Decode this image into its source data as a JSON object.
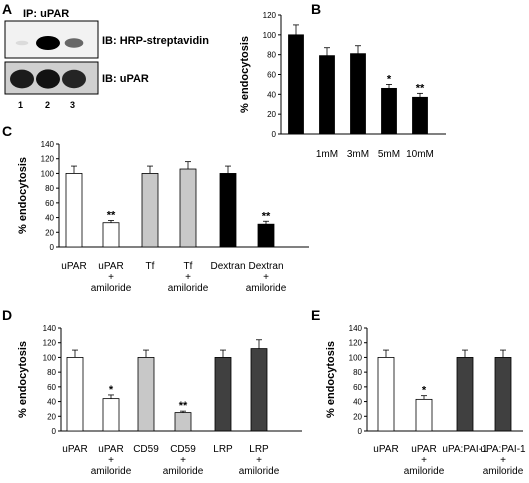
{
  "panel_a": {
    "letter": "A",
    "ip_label": "IP: uPAR",
    "blot_top_label": "IB: HRP-streptavidin",
    "blot_bottom_label": "IB: uPAR",
    "lanes": [
      "1",
      "2",
      "3"
    ],
    "top_band_intensity": [
      0.05,
      1.0,
      0.55
    ],
    "bottom_band_intensity": [
      0.85,
      0.9,
      0.8
    ]
  },
  "chart_data": [
    {
      "panel": "B",
      "type": "bar",
      "ylabel": "% endocytosis",
      "ylim": [
        0,
        120
      ],
      "yticks": [
        0,
        20,
        40,
        60,
        80,
        100,
        120
      ],
      "categories": [
        "",
        "1mM",
        "3mM",
        "5mM",
        "10mM"
      ],
      "values": [
        100,
        79,
        81,
        46,
        37
      ],
      "errors": [
        10,
        8,
        8,
        4,
        4
      ],
      "significance": [
        "",
        "",
        "",
        "*",
        "**"
      ],
      "colors": [
        "#000000",
        "#000000",
        "#000000",
        "#000000",
        "#000000"
      ]
    },
    {
      "panel": "C",
      "type": "bar",
      "ylabel": "% endocytosis",
      "ylim": [
        0,
        140
      ],
      "yticks": [
        0,
        20,
        40,
        60,
        80,
        100,
        120,
        140
      ],
      "categories": [
        [
          "uPAR"
        ],
        [
          "uPAR",
          "+",
          "amiloride"
        ],
        [
          "Tf"
        ],
        [
          "Tf",
          "+",
          "amiloride"
        ],
        [
          "Dextran"
        ],
        [
          "Dextran",
          "+",
          "amiloride"
        ]
      ],
      "values": [
        100,
        33,
        100,
        106,
        100,
        31
      ],
      "errors": [
        10,
        3,
        10,
        10,
        10,
        4
      ],
      "significance": [
        "",
        "**",
        "",
        "",
        "",
        "**"
      ],
      "colors": [
        "#ffffff",
        "#ffffff",
        "#c8c8c8",
        "#c8c8c8",
        "#000000",
        "#000000"
      ]
    },
    {
      "panel": "D",
      "type": "bar",
      "ylabel": "% endocytosis",
      "ylim": [
        0,
        140
      ],
      "yticks": [
        0,
        20,
        40,
        60,
        80,
        100,
        120,
        140
      ],
      "categories": [
        [
          "uPAR"
        ],
        [
          "uPAR",
          "+",
          "amiloride"
        ],
        [
          "CD59"
        ],
        [
          "CD59",
          "+",
          "amiloride"
        ],
        [
          "LRP"
        ],
        [
          "LRP",
          "+",
          "amiloride"
        ]
      ],
      "values": [
        100,
        44,
        100,
        25,
        100,
        112
      ],
      "errors": [
        10,
        5,
        10,
        2,
        10,
        12
      ],
      "significance": [
        "",
        "*",
        "",
        "**",
        "",
        ""
      ],
      "colors": [
        "#ffffff",
        "#ffffff",
        "#c8c8c8",
        "#c8c8c8",
        "#404040",
        "#404040"
      ]
    },
    {
      "panel": "E",
      "type": "bar",
      "ylabel": "% endocytosis",
      "ylim": [
        0,
        140
      ],
      "yticks": [
        0,
        20,
        40,
        60,
        80,
        100,
        120,
        140
      ],
      "categories": [
        [
          "uPAR"
        ],
        [
          "uPAR",
          "+",
          "amiloride"
        ],
        [
          "uPA:PAI-1"
        ],
        [
          "uPA:PAI-1",
          "+",
          "amiloride"
        ]
      ],
      "values": [
        100,
        43,
        100,
        100
      ],
      "errors": [
        10,
        5,
        10,
        10
      ],
      "significance": [
        "",
        "*",
        "",
        ""
      ],
      "colors": [
        "#ffffff",
        "#ffffff",
        "#404040",
        "#404040"
      ]
    }
  ]
}
